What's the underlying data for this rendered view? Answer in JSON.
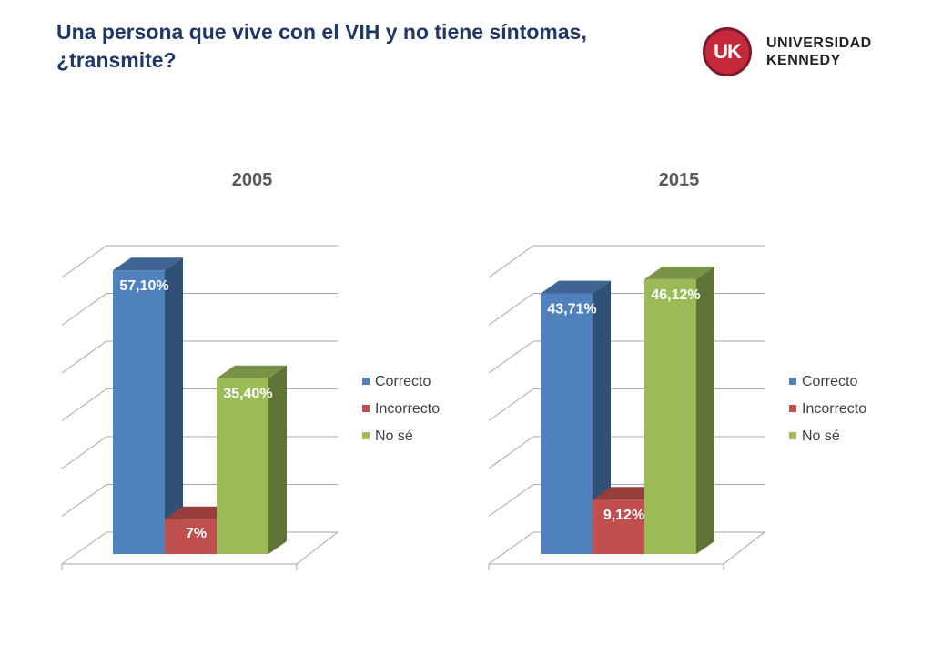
{
  "slide": {
    "title_line1": "Una persona que vive con el VIH y no tiene síntomas,",
    "title_line2": "¿transmite?"
  },
  "logo": {
    "badge": "UK",
    "line1": "UNIVERSIDAD",
    "line2": "KENNEDY",
    "color": "#c4283a"
  },
  "chart_data": [
    {
      "type": "bar",
      "title": "2005",
      "categories": [
        "Correcto",
        "Incorrecto",
        "No sé"
      ],
      "values": [
        57.1,
        7,
        35.4
      ],
      "labels": [
        "57,10%",
        "7%",
        "35,40%"
      ],
      "colors": [
        "#4f81bd",
        "#c0504d",
        "#9bbb59"
      ],
      "ylim": [
        0,
        60
      ],
      "grid": true,
      "legend": "right"
    },
    {
      "type": "bar",
      "title": "2015",
      "categories": [
        "Correcto",
        "Incorrecto",
        "No sé"
      ],
      "values": [
        43.71,
        9.12,
        46.12
      ],
      "labels": [
        "43,71%",
        "9,12%",
        "46,12%"
      ],
      "colors": [
        "#4f81bd",
        "#c0504d",
        "#9bbb59"
      ],
      "ylim": [
        0,
        50
      ],
      "grid": true,
      "legend": "right"
    }
  ]
}
